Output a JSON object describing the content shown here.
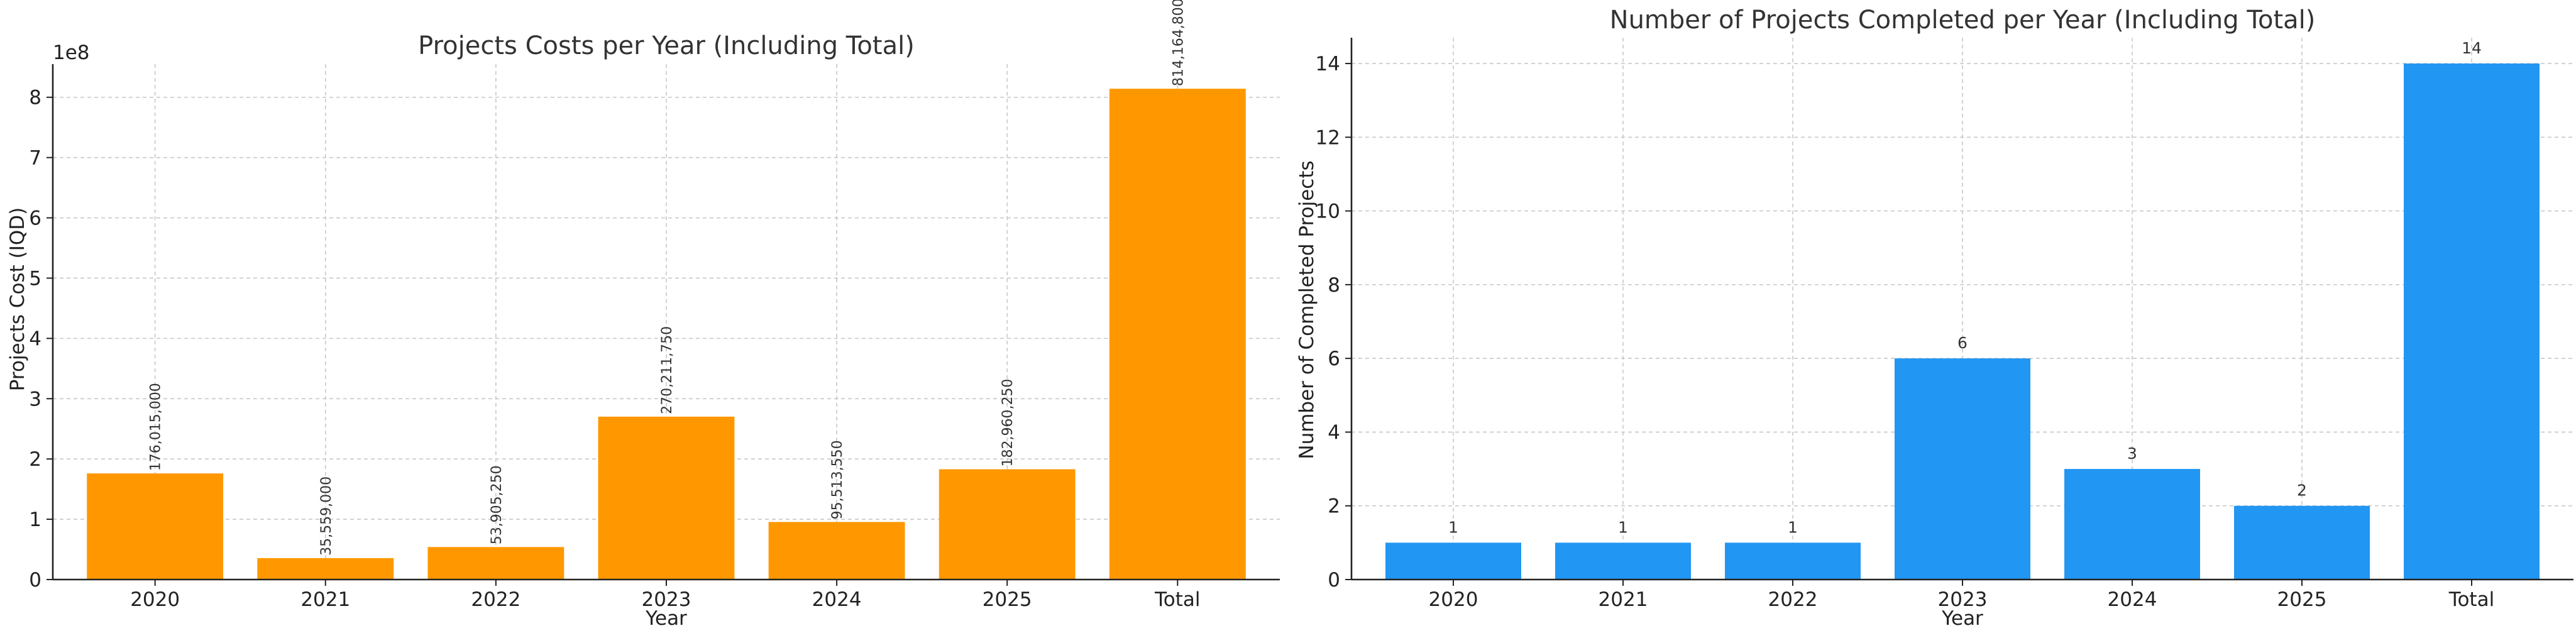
{
  "chart_data": [
    {
      "type": "bar",
      "title": "Projects Costs per Year (Including Total)",
      "xlabel": "Year",
      "ylabel": "Projects Cost (IQD)",
      "offset_text": "1e8",
      "categories": [
        "2020",
        "2021",
        "2022",
        "2023",
        "2024",
        "2025",
        "Total"
      ],
      "values": [
        176015000,
        35559000,
        53905250,
        270211750,
        95513550,
        182960250,
        814164800
      ],
      "value_labels": [
        "176,015,000",
        "35,559,000",
        "53,905,250",
        "270,211,750",
        "95,513,550",
        "182,960,250",
        "814,164,800"
      ],
      "yticks": [
        0,
        1,
        2,
        3,
        4,
        5,
        6,
        7,
        8
      ],
      "ylim": [
        0,
        855000000
      ],
      "tick_scale": 100000000,
      "bar_color": "#FF9800",
      "grid": true,
      "label_rotation": -90
    },
    {
      "type": "bar",
      "title": "Number of Projects Completed per Year (Including Total)",
      "xlabel": "Year",
      "ylabel": "Number of Completed Projects",
      "offset_text": "",
      "categories": [
        "2020",
        "2021",
        "2022",
        "2023",
        "2024",
        "2025",
        "Total"
      ],
      "values": [
        1,
        1,
        1,
        6,
        3,
        2,
        14
      ],
      "value_labels": [
        "1",
        "1",
        "1",
        "6",
        "3",
        "2",
        "14"
      ],
      "yticks": [
        0,
        2,
        4,
        6,
        8,
        10,
        12,
        14
      ],
      "ylim": [
        0,
        14.7
      ],
      "tick_scale": 1,
      "bar_color": "#2196F3",
      "grid": true,
      "label_rotation": 0
    }
  ]
}
